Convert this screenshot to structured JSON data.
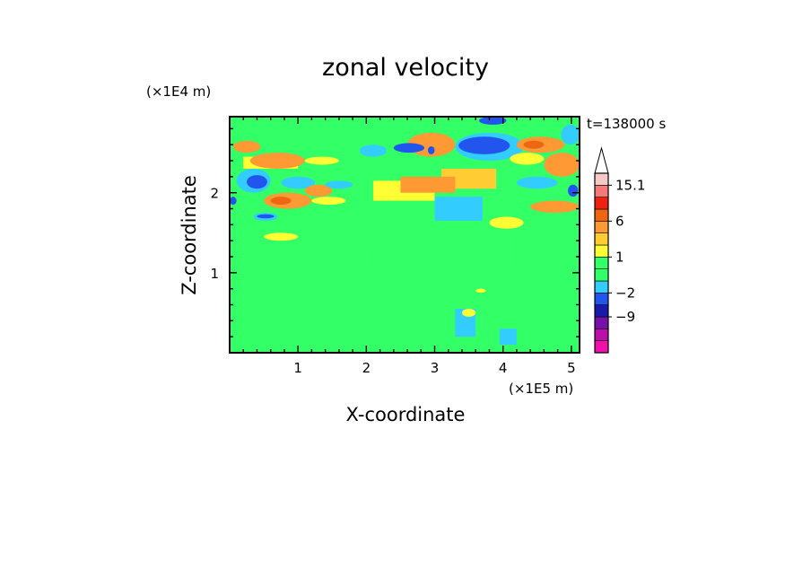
{
  "chart_data": {
    "type": "heatmap",
    "title": "zonal velocity",
    "xlabel": "X-coordinate",
    "ylabel": "Z-coordinate",
    "x_unit": "(×1E5 m)",
    "y_unit": "(×1E4 m)",
    "time_label": "t=138000 s",
    "xlim": [
      0,
      5.12
    ],
    "ylim": [
      0,
      2.95
    ],
    "x_ticks": [
      1,
      2,
      3,
      4,
      5
    ],
    "y_ticks": [
      1,
      2
    ],
    "colorbar": {
      "levels": [
        -15,
        -12,
        -9,
        -6,
        -2,
        -1,
        0,
        1,
        2,
        3,
        6,
        9,
        12,
        15.1
      ],
      "tick_labels": [
        {
          "value": 15.1,
          "text": "15.1"
        },
        {
          "value": 6,
          "text": "6"
        },
        {
          "value": 1,
          "text": "1"
        },
        {
          "value": -2,
          "text": "−2"
        },
        {
          "value": -9,
          "text": "−9"
        }
      ],
      "colors": [
        "#ee11aa",
        "#bb11aa",
        "#7711aa",
        "#1a1aaa",
        "#2255ee",
        "#33ccff",
        "#33ff66",
        "#33ff66",
        "#ffff33",
        "#ffcc33",
        "#ff9933",
        "#ee6611",
        "#ee2211",
        "#f47a7a",
        "#f7c8c8"
      ],
      "overflow": "upper"
    },
    "field_regions": [
      {
        "x0": 0.0,
        "x1": 5.12,
        "z0": 0.0,
        "z1": 2.95,
        "value": 0.5,
        "shape": "rect"
      },
      {
        "x0": 0.0,
        "x1": 1.5,
        "z0": 0.55,
        "z1": 1.05,
        "value": 0.0,
        "shape": "rect"
      },
      {
        "x0": 1.0,
        "x1": 2.6,
        "z0": 0.3,
        "z1": 0.55,
        "value": 0.0,
        "shape": "rect"
      },
      {
        "x0": 2.6,
        "x1": 5.0,
        "z0": 0.05,
        "z1": 0.25,
        "value": 0.0,
        "shape": "rect"
      },
      {
        "x0": 0.8,
        "x1": 2.1,
        "z0": 1.05,
        "z1": 1.3,
        "value": 0.0,
        "shape": "rect"
      },
      {
        "x0": 2.6,
        "x1": 4.2,
        "z0": 1.0,
        "z1": 1.45,
        "value": 0.0,
        "shape": "rect"
      },
      {
        "x0": 4.5,
        "x1": 5.1,
        "z0": 0.85,
        "z1": 1.1,
        "value": 0.0,
        "shape": "rect"
      },
      {
        "x0": 1.7,
        "x1": 2.3,
        "z0": 1.3,
        "z1": 1.75,
        "value": 0.0,
        "shape": "rect"
      },
      {
        "x0": 0.6,
        "x1": 1.5,
        "z0": 1.5,
        "z1": 1.75,
        "value": 0.0,
        "shape": "rect"
      },
      {
        "x0": 3.3,
        "x1": 3.6,
        "z0": 0.2,
        "z1": 0.55,
        "value": -1.5,
        "shape": "rect"
      },
      {
        "x0": 3.95,
        "x1": 4.2,
        "z0": 0.1,
        "z1": 0.3,
        "value": -1.5,
        "shape": "rect"
      },
      {
        "x0": 0.0,
        "x1": 0.6,
        "z0": 2.35,
        "z1": 2.7,
        "value": 0.0,
        "shape": "rect"
      },
      {
        "x0": 2.0,
        "x1": 3.0,
        "z0": 2.5,
        "z1": 2.8,
        "value": 0.0,
        "shape": "rect"
      },
      {
        "x0": 0.7,
        "x1": 1.6,
        "z0": 1.9,
        "z1": 2.3,
        "value": 0.0,
        "shape": "rect"
      },
      {
        "x0": 0.2,
        "x1": 1.0,
        "z0": 2.3,
        "z1": 2.45,
        "value": 1.5,
        "shape": "rect"
      },
      {
        "x0": 3.0,
        "x1": 3.7,
        "z0": 1.65,
        "z1": 1.95,
        "value": -1.5,
        "shape": "rect"
      },
      {
        "x0": 2.1,
        "x1": 3.0,
        "z0": 1.9,
        "z1": 2.15,
        "value": 1.5,
        "shape": "rect"
      },
      {
        "x0": 3.1,
        "x1": 3.9,
        "z0": 2.05,
        "z1": 2.3,
        "value": 2.5,
        "shape": "rect"
      },
      {
        "x0": 2.5,
        "x1": 3.3,
        "z0": 2.0,
        "z1": 2.2,
        "value": 4.0,
        "shape": "rect"
      },
      {
        "x0": 0.05,
        "x1": 0.45,
        "z0": 2.5,
        "z1": 2.65,
        "value": 4.0,
        "shape": "ellipse"
      },
      {
        "x0": 0.3,
        "x1": 1.1,
        "z0": 2.3,
        "z1": 2.5,
        "value": 4.0,
        "shape": "ellipse"
      },
      {
        "x0": 0.35,
        "x1": 0.7,
        "z0": 1.65,
        "z1": 1.75,
        "value": -1.5,
        "shape": "ellipse"
      },
      {
        "x0": 0.4,
        "x1": 0.65,
        "z0": 1.68,
        "z1": 1.73,
        "value": -3.0,
        "shape": "ellipse"
      },
      {
        "x0": 0.1,
        "x1": 0.6,
        "z0": 2.0,
        "z1": 2.3,
        "value": -1.5,
        "shape": "ellipse"
      },
      {
        "x0": 0.25,
        "x1": 0.55,
        "z0": 2.05,
        "z1": 2.22,
        "value": -5.0,
        "shape": "ellipse"
      },
      {
        "x0": 0.0,
        "x1": 0.1,
        "z0": 1.85,
        "z1": 1.95,
        "value": -3.0,
        "shape": "ellipse"
      },
      {
        "x0": 0.5,
        "x1": 1.2,
        "z0": 1.8,
        "z1": 2.0,
        "value": 4.0,
        "shape": "ellipse"
      },
      {
        "x0": 0.6,
        "x1": 0.9,
        "z0": 1.85,
        "z1": 1.95,
        "value": 7.0,
        "shape": "ellipse"
      },
      {
        "x0": 0.5,
        "x1": 1.0,
        "z0": 1.4,
        "z1": 1.5,
        "value": 1.5,
        "shape": "ellipse"
      },
      {
        "x0": 0.75,
        "x1": 1.25,
        "z0": 2.05,
        "z1": 2.2,
        "value": -1.5,
        "shape": "ellipse"
      },
      {
        "x0": 1.1,
        "x1": 1.5,
        "z0": 1.95,
        "z1": 2.1,
        "value": 4.0,
        "shape": "ellipse"
      },
      {
        "x0": 1.4,
        "x1": 1.8,
        "z0": 2.05,
        "z1": 2.15,
        "value": -1.5,
        "shape": "ellipse"
      },
      {
        "x0": 1.9,
        "x1": 2.3,
        "z0": 2.45,
        "z1": 2.6,
        "value": -1.5,
        "shape": "ellipse"
      },
      {
        "x0": 1.1,
        "x1": 1.6,
        "z0": 2.35,
        "z1": 2.45,
        "value": 1.5,
        "shape": "ellipse"
      },
      {
        "x0": 2.6,
        "x1": 3.3,
        "z0": 2.45,
        "z1": 2.75,
        "value": 4.0,
        "shape": "ellipse"
      },
      {
        "x0": 2.9,
        "x1": 3.0,
        "z0": 2.48,
        "z1": 2.58,
        "value": -3.0,
        "shape": "ellipse"
      },
      {
        "x0": 2.4,
        "x1": 2.85,
        "z0": 2.5,
        "z1": 2.62,
        "value": -3.0,
        "shape": "ellipse"
      },
      {
        "x0": 3.3,
        "x1": 4.3,
        "z0": 2.4,
        "z1": 2.75,
        "value": -1.5,
        "shape": "ellipse"
      },
      {
        "x0": 3.35,
        "x1": 4.1,
        "z0": 2.48,
        "z1": 2.7,
        "value": -5.0,
        "shape": "ellipse"
      },
      {
        "x0": 4.2,
        "x1": 4.9,
        "z0": 2.5,
        "z1": 2.7,
        "value": 4.0,
        "shape": "ellipse"
      },
      {
        "x0": 4.3,
        "x1": 4.6,
        "z0": 2.55,
        "z1": 2.65,
        "value": 7.0,
        "shape": "ellipse"
      },
      {
        "x0": 4.85,
        "x1": 5.12,
        "z0": 2.6,
        "z1": 2.85,
        "value": -1.5,
        "shape": "ellipse"
      },
      {
        "x0": 4.1,
        "x1": 4.6,
        "z0": 2.35,
        "z1": 2.5,
        "value": 1.5,
        "shape": "ellipse"
      },
      {
        "x0": 4.6,
        "x1": 5.12,
        "z0": 2.2,
        "z1": 2.5,
        "value": 4.0,
        "shape": "ellipse"
      },
      {
        "x0": 4.2,
        "x1": 4.8,
        "z0": 2.05,
        "z1": 2.2,
        "value": -1.5,
        "shape": "ellipse"
      },
      {
        "x0": 4.95,
        "x1": 5.1,
        "z0": 1.95,
        "z1": 2.1,
        "value": -5.0,
        "shape": "ellipse"
      },
      {
        "x0": 4.4,
        "x1": 5.12,
        "z0": 1.75,
        "z1": 1.9,
        "value": 4.0,
        "shape": "ellipse"
      },
      {
        "x0": 3.65,
        "x1": 4.05,
        "z0": 2.85,
        "z1": 2.95,
        "value": -5.0,
        "shape": "ellipse"
      },
      {
        "x0": 3.8,
        "x1": 4.3,
        "z0": 1.55,
        "z1": 1.7,
        "value": 1.5,
        "shape": "ellipse"
      },
      {
        "x0": 1.2,
        "x1": 1.7,
        "z0": 1.85,
        "z1": 1.95,
        "value": 1.5,
        "shape": "ellipse"
      },
      {
        "x0": 3.4,
        "x1": 3.6,
        "z0": 0.45,
        "z1": 0.55,
        "value": 1.5,
        "shape": "ellipse"
      },
      {
        "x0": 3.6,
        "x1": 3.75,
        "z0": 0.75,
        "z1": 0.8,
        "value": 1.5,
        "shape": "ellipse"
      }
    ]
  }
}
